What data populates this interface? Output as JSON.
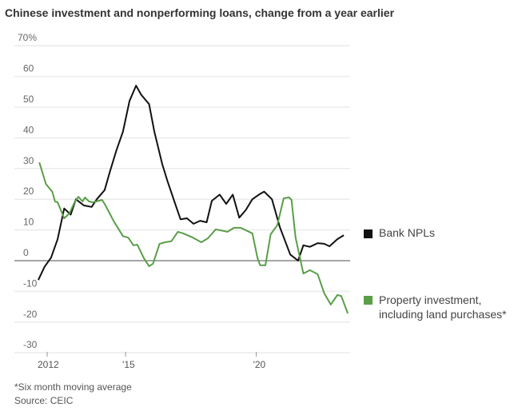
{
  "title": "Chinese investment and nonperforming loans, change from a year earlier",
  "footnote": "*Six month moving average",
  "source": "Source: CEIC",
  "chart_data": {
    "type": "line",
    "title": "Chinese investment and nonperforming loans, change from a year earlier",
    "y_ticks": [
      "70%",
      "60",
      "50",
      "40",
      "30",
      "20",
      "10",
      "0",
      "-10",
      "-20",
      "-30"
    ],
    "y_tick_values": [
      70,
      60,
      50,
      40,
      30,
      20,
      10,
      0,
      -10,
      -20,
      -30
    ],
    "ylim": [
      -30,
      70
    ],
    "x_ticks": [
      "2012",
      "'15",
      "'20"
    ],
    "x_tick_values": [
      2012,
      2015,
      2020
    ],
    "xlim": [
      2011.6,
      2023.6
    ],
    "grid": true,
    "legend_placement": "right",
    "series": [
      {
        "name": "Bank NPLs",
        "color": "#111111",
        "x": [
          2011.66,
          2011.9,
          2012.15,
          2012.4,
          2012.65,
          2012.9,
          2013.1,
          2013.4,
          2013.7,
          2013.9,
          2014.2,
          2014.4,
          2014.65,
          2014.9,
          2015.15,
          2015.4,
          2015.6,
          2015.9,
          2016.1,
          2016.4,
          2016.6,
          2016.9,
          2017.1,
          2017.35,
          2017.6,
          2017.85,
          2018.1,
          2018.3,
          2018.6,
          2018.85,
          2019.1,
          2019.35,
          2019.6,
          2019.85,
          2020.1,
          2020.3,
          2020.6,
          2020.9,
          2021.3,
          2021.6,
          2021.8,
          2022.05,
          2022.35,
          2022.6,
          2022.8,
          2023.1,
          2023.35
        ],
        "values": [
          -6.3,
          -2,
          1,
          7,
          17,
          15,
          20,
          18,
          17.5,
          20,
          23,
          29,
          36,
          42,
          52,
          57,
          54,
          51,
          42,
          31.5,
          26,
          18.5,
          13.5,
          13.8,
          12,
          13,
          12.5,
          19.5,
          21.5,
          18.5,
          21.5,
          14,
          16.5,
          20,
          21.5,
          22.5,
          20,
          11,
          2,
          0,
          5,
          4.5,
          5.7,
          5.5,
          4.7,
          7,
          8.3
        ]
      },
      {
        "name": "Property investment, including land purchases*",
        "color": "#5a9e48",
        "x": [
          2011.7,
          2011.95,
          2012.2,
          2012.3,
          2012.4,
          2012.65,
          2012.85,
          2013.05,
          2013.2,
          2013.35,
          2013.45,
          2013.6,
          2013.75,
          2014.1,
          2014.2,
          2014.55,
          2014.9,
          2015.1,
          2015.3,
          2015.45,
          2015.7,
          2015.9,
          2016.05,
          2016.3,
          2016.5,
          2016.75,
          2017.0,
          2017.2,
          2017.55,
          2017.9,
          2018.15,
          2018.45,
          2018.9,
          2019.15,
          2019.4,
          2019.85,
          2020.05,
          2020.15,
          2020.35,
          2020.55,
          2020.8,
          2021.05,
          2021.25,
          2021.35,
          2021.5,
          2021.8,
          2022.05,
          2022.35,
          2022.6,
          2022.85,
          2023.1,
          2023.25,
          2023.5
        ],
        "values": [
          32,
          25,
          22.4,
          19.3,
          19,
          13.8,
          15.4,
          19,
          20.8,
          19.3,
          20.6,
          19.3,
          19,
          19.8,
          18.5,
          12.8,
          8,
          7.5,
          5,
          5.2,
          0.8,
          -1.8,
          -1,
          5.5,
          6,
          6.3,
          9.4,
          8.9,
          7.6,
          6,
          7.3,
          10.2,
          9.4,
          10.7,
          10.7,
          8.9,
          0.8,
          -1.5,
          -1.5,
          8.6,
          11.5,
          20.3,
          20.6,
          19.8,
          7.6,
          -4.2,
          -3.1,
          -4.4,
          -10.6,
          -14.3,
          -11.2,
          -11.5,
          -17.2
        ]
      }
    ]
  }
}
